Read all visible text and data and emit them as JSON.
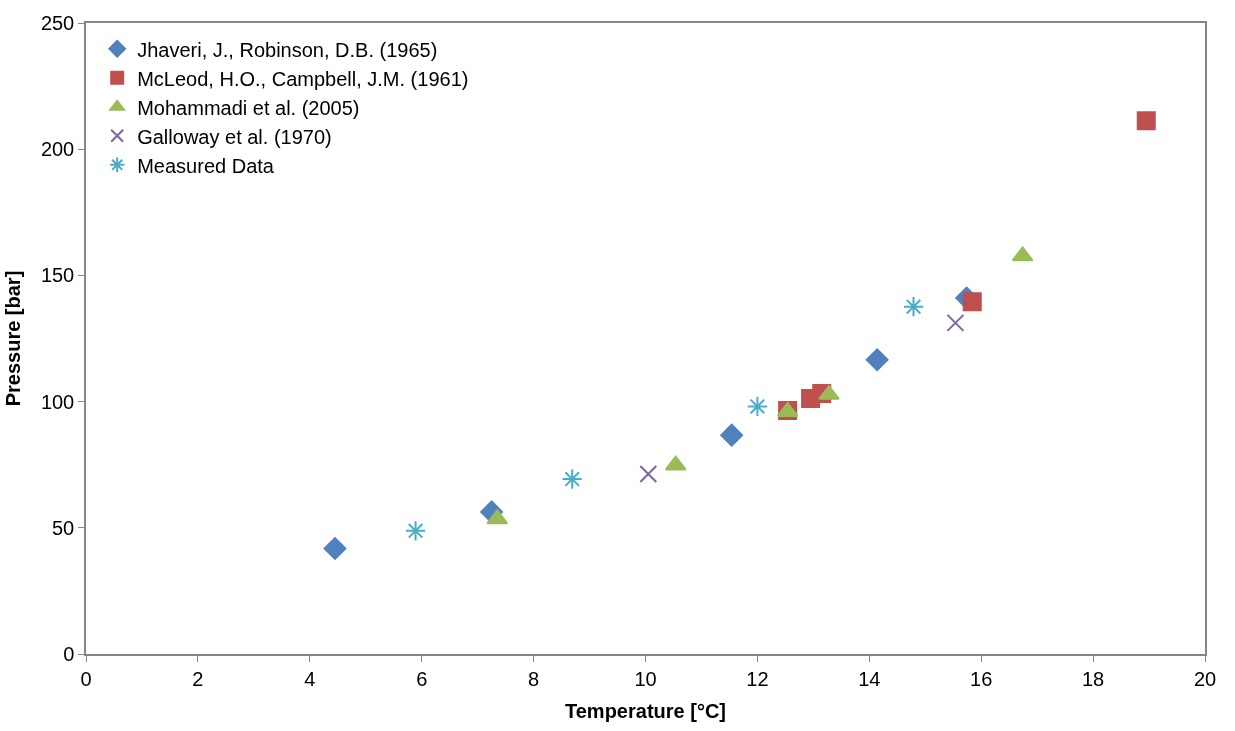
{
  "chart_data": {
    "type": "scatter",
    "xlabel": "Temperature [°C]",
    "ylabel": "Pressure [bar]",
    "xlim": [
      0,
      20
    ],
    "xticks": [
      0,
      2,
      4,
      6,
      8,
      10,
      12,
      14,
      16,
      18,
      20
    ],
    "ylim": [
      0,
      250
    ],
    "yticks": [
      0,
      50,
      100,
      150,
      200,
      250
    ],
    "grid": false,
    "legend": "top left",
    "series": [
      {
        "name": "Jhaveri, J., Robinson, D.B. (1965)",
        "color": "#4f81bd",
        "marker": "diamond",
        "x": [
          4.45,
          7.25,
          11.54,
          14.14,
          15.74
        ],
        "values": [
          41.8,
          56.3,
          86.7,
          116.6,
          141
        ]
      },
      {
        "name": "McLeod, H.O., Campbell, J.M. (1961)",
        "color": "#c0504d",
        "marker": "square",
        "x": [
          12.54,
          12.95,
          13.15,
          15.84,
          18.95
        ],
        "values": [
          96.5,
          101.2,
          103.2,
          139.6,
          211.3
        ]
      },
      {
        "name": "Mohammadi et al. (2005)",
        "color": "#9bbb59",
        "marker": "triangle",
        "x": [
          7.35,
          10.54,
          12.54,
          13.28,
          16.74
        ],
        "values": [
          53.5,
          74.8,
          96,
          102.8,
          157.7
        ]
      },
      {
        "name": "Galloway et al. (1970)",
        "color": "#8064a2",
        "marker": "cross",
        "x": [
          10.05,
          15.54
        ],
        "values": [
          71.3,
          131.2
        ]
      },
      {
        "name": "Measured Data",
        "color": "#4bacc6",
        "x": [
          5.89,
          8.69,
          12.0,
          14.79
        ],
        "values": [
          48.8,
          69.3,
          98.1,
          137.6
        ]
      }
    ]
  }
}
